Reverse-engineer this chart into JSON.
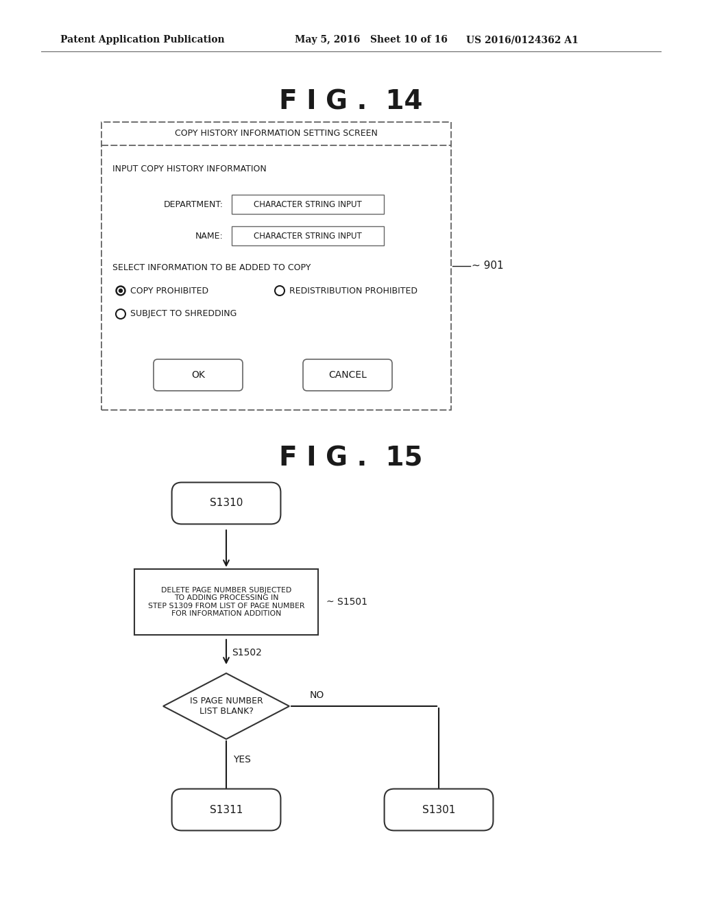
{
  "bg_color": "#ffffff",
  "header_left": "Patent Application Publication",
  "header_mid": "May 5, 2016   Sheet 10 of 16",
  "header_right": "US 2016/0124362 A1",
  "fig14_title": "F I G .  14",
  "fig15_title": "F I G .  15",
  "screen_title": "COPY HISTORY INFORMATION SETTING SCREEN",
  "input_label": "INPUT COPY HISTORY INFORMATION",
  "dept_label": "DEPARTMENT:",
  "dept_input": "CHARACTER STRING INPUT",
  "name_label": "NAME:",
  "name_input": "CHARACTER STRING INPUT",
  "select_label": "SELECT INFORMATION TO BE ADDED TO COPY",
  "radio1_label": "COPY PROHIBITED",
  "radio2_label": "REDISTRIBUTION PROHIBITED",
  "radio3_label": "SUBJECT TO SHREDDING",
  "ok_label": "OK",
  "cancel_label": "CANCEL",
  "label_901": "901",
  "s1310_label": "S1310",
  "s1501_box_text": "DELETE PAGE NUMBER SUBJECTED\nTO ADDING PROCESSING IN\nSTEP S1309 FROM LIST OF PAGE NUMBER\nFOR INFORMATION ADDITION",
  "s1501_label": "S1501",
  "s1502_label": "S1502",
  "diamond_text": "IS PAGE NUMBER\nLIST BLANK?",
  "yes_label": "YES",
  "no_label": "NO",
  "s1311_label": "S1311",
  "s1301_label": "S1301"
}
